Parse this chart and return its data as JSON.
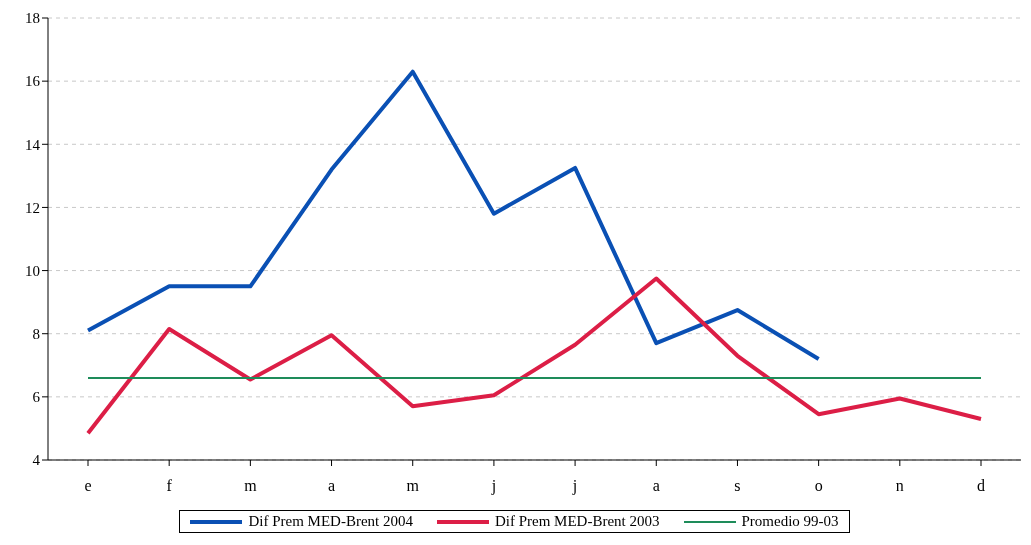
{
  "chart_data": {
    "type": "line",
    "categories": [
      "e",
      "f",
      "m",
      "a",
      "m",
      "j",
      "j",
      "a",
      "s",
      "o",
      "n",
      "d"
    ],
    "series": [
      {
        "name": "Dif Prem MED-Brent 2004",
        "color": "#0a50b4",
        "values": [
          8.1,
          9.5,
          9.5,
          13.2,
          16.3,
          11.8,
          13.25,
          7.7,
          8.75,
          7.2,
          null,
          null
        ]
      },
      {
        "name": "Dif Prem MED-Brent 2003",
        "color": "#dc1e46",
        "values": [
          4.85,
          8.15,
          6.55,
          7.95,
          5.7,
          6.05,
          7.65,
          9.75,
          7.3,
          5.45,
          5.95,
          5.3
        ]
      },
      {
        "name": "Promedio 99-03",
        "color": "#1e8c5a",
        "values": [
          6.6,
          6.6,
          6.6,
          6.6,
          6.6,
          6.6,
          6.6,
          6.6,
          6.6,
          6.6,
          6.6,
          6.6
        ]
      }
    ],
    "ylim": [
      4,
      18
    ],
    "yticks": [
      4,
      6,
      8,
      10,
      12,
      14,
      16,
      18
    ],
    "grid": "y",
    "legend": "bottom",
    "marker": "none",
    "line_style": "solid"
  }
}
